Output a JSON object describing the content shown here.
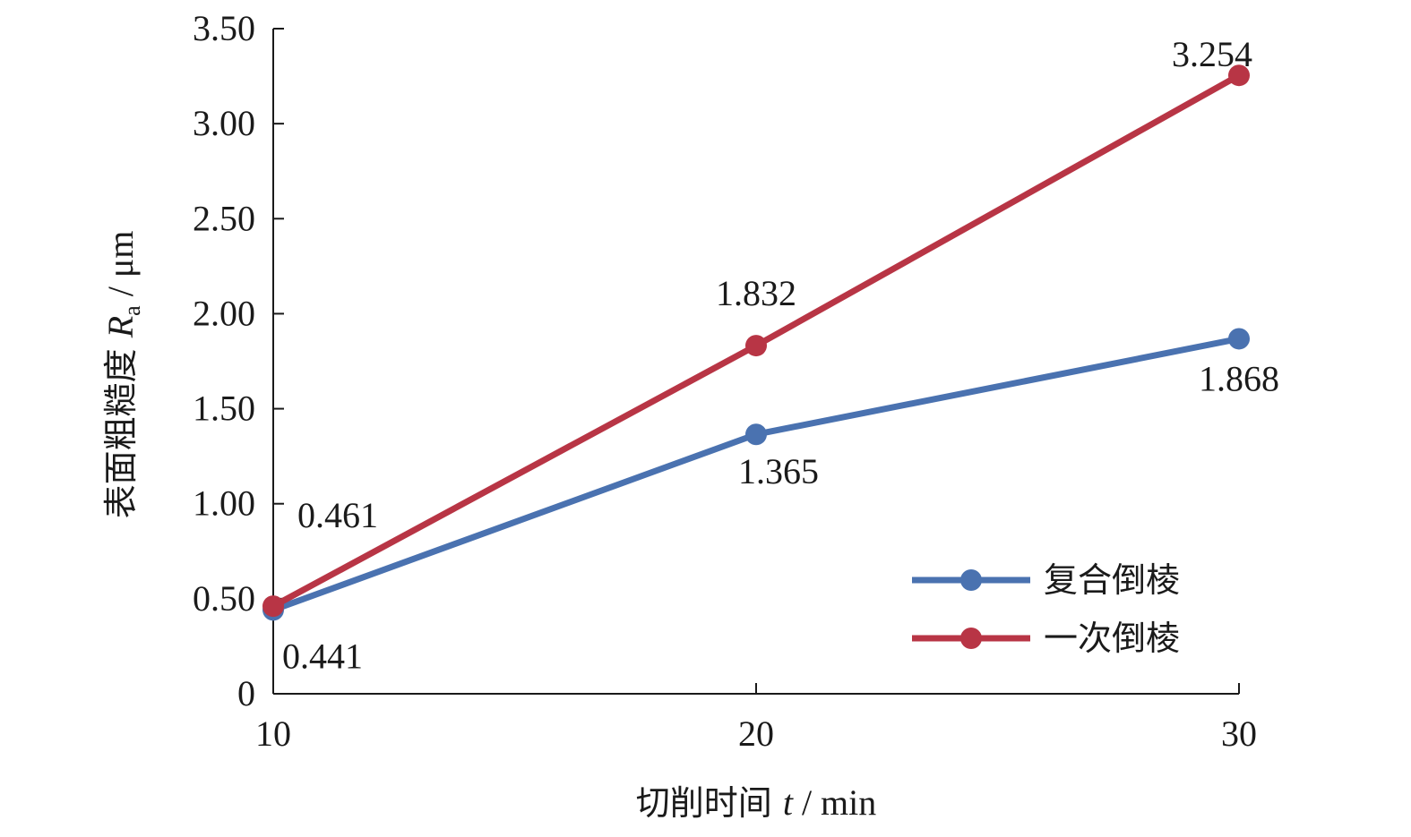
{
  "chart_data": {
    "type": "line",
    "x": [
      10,
      20,
      30
    ],
    "xlim": [
      10,
      30
    ],
    "ylim": [
      0,
      3.5
    ],
    "x_ticks": [
      "10",
      "20",
      "30"
    ],
    "y_ticks": [
      "0",
      "0.50",
      "1.00",
      "1.50",
      "2.00",
      "2.50",
      "3.00",
      "3.50"
    ],
    "xlabel": {
      "prefix": "切削时间 ",
      "var": "t",
      "suffix": " / min"
    },
    "ylabel": {
      "prefix": "表面粗糙度 ",
      "var": "R",
      "sub": "a",
      "suffix": " / μm"
    },
    "grid": false,
    "legend_position": "bottom-right",
    "series": [
      {
        "name": "复合倒棱",
        "color": "#4a72b0",
        "values": [
          0.441,
          1.365,
          1.868
        ],
        "labels": [
          "0.441",
          "1.365",
          "1.868"
        ]
      },
      {
        "name": "一次倒棱",
        "color": "#b83545",
        "values": [
          0.461,
          1.832,
          3.254
        ],
        "labels": [
          "0.461",
          "1.832",
          "3.254"
        ]
      }
    ]
  }
}
